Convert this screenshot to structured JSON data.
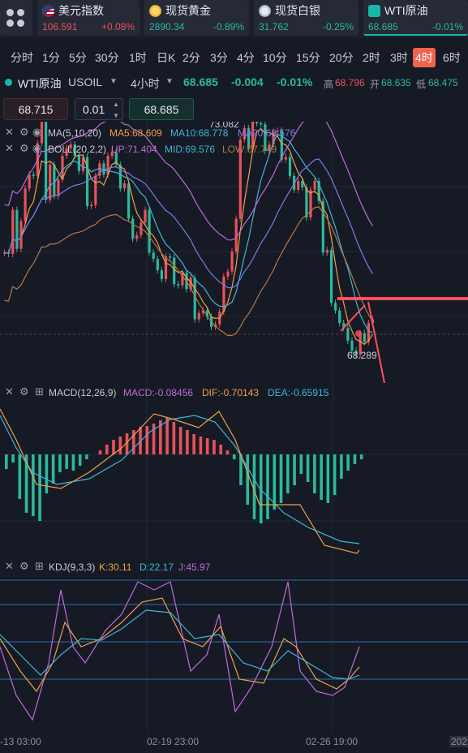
{
  "quotes": [
    {
      "name": "美元指数",
      "price": "106.591",
      "change": "+0.08%",
      "icon": "us-flag-icon",
      "price_dir": "up"
    },
    {
      "name": "现货黄金",
      "price": "2890.34",
      "change": "-0.89%",
      "icon": "gold-coin-icon",
      "price_dir": "down"
    },
    {
      "name": "现货白银",
      "price": "31.762",
      "change": "-0.25%",
      "icon": "silver-coin-icon",
      "price_dir": "down"
    },
    {
      "name": "WTI原油",
      "price": "68.685",
      "change": "-0.01%",
      "icon": "oil-icon",
      "price_dir": "down"
    }
  ],
  "timeframes": [
    "分时",
    "1分",
    "5分",
    "30分",
    "1时",
    "日K",
    "2分",
    "3分",
    "4分",
    "10分",
    "15分",
    "20分",
    "2时",
    "3时",
    "4时",
    "6时"
  ],
  "active_timeframe": "4时",
  "symbol": {
    "name": "WTI原油",
    "code": "USOIL",
    "period": "4小时",
    "price": "68.685",
    "change": "-0.004",
    "change_pct": "-0.01%",
    "high_label": "高",
    "high": "68.796",
    "open_label": "开",
    "open": "68.635",
    "low_label": "低",
    "low": "68.475"
  },
  "order": {
    "sell_price": "68.715",
    "quantity": "0.01",
    "buy_price": "68.685"
  },
  "main_chart": {
    "ma_label": "MA(5,10,20)",
    "ma5": "MA5:68.609",
    "ma10": "MA10:68.778",
    "ma20": "MA20:69.576",
    "boll_label": "BOLL(20,2,2)",
    "boll_up": "UP:71.404",
    "boll_mid": "MID:69.576",
    "boll_low": "LOW:67.749",
    "max_label": "73.082",
    "min_label": "68.289"
  },
  "macd": {
    "label": "MACD(12,26,9)",
    "macd": "MACD:-0.08456",
    "dif": "DIF:-0.70143",
    "dea": "DEA:-0.65915"
  },
  "kdj": {
    "label": "KDJ(9,3,3)",
    "k": "K:30.11",
    "d": "D:22.17",
    "j": "J:45.97"
  },
  "time_axis": [
    "-13 03:00",
    "02-19 23:00",
    "02-26 19:00",
    "202"
  ],
  "colors": {
    "up": "#e8525b",
    "down": "#2bb99b",
    "ma5": "#f0a04b",
    "ma10": "#3fb6d6",
    "ma20": "#7b7be8",
    "boll_up": "#c06bd9",
    "boll_low": "#b07a4a",
    "active_tab": "#f0634f"
  }
}
